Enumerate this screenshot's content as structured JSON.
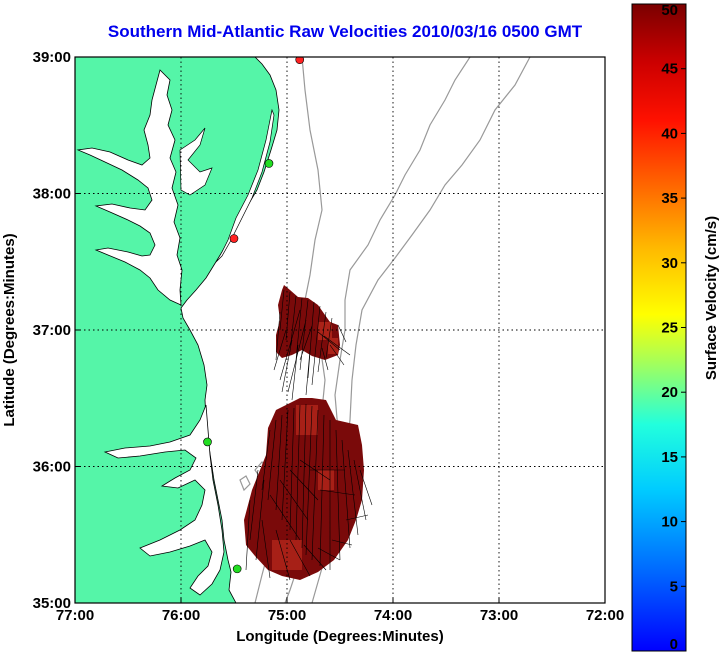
{
  "title": "Southern Mid-Atlantic Raw Velocities 2010/03/16 0500 GMT",
  "xlabel": "Longitude (Degrees:Minutes)",
  "ylabel": "Latitude (Degrees:Minutes)",
  "colorbar_label": "Surface Velocity (cm/s)",
  "lon_ticks": [
    {
      "value": -77,
      "label": "77:00"
    },
    {
      "value": -76,
      "label": "76:00"
    },
    {
      "value": -75,
      "label": "75:00"
    },
    {
      "value": -74,
      "label": "74:00"
    },
    {
      "value": -73,
      "label": "73:00"
    },
    {
      "value": -72,
      "label": "72:00"
    }
  ],
  "lat_ticks": [
    {
      "value": 35,
      "label": "35:00"
    },
    {
      "value": 36,
      "label": "36:00"
    },
    {
      "value": 37,
      "label": "37:00"
    },
    {
      "value": 38,
      "label": "38:00"
    },
    {
      "value": 39,
      "label": "39:00"
    }
  ],
  "colorbar_ticks": [
    {
      "value": 0,
      "label": "0"
    },
    {
      "value": 5,
      "label": "5"
    },
    {
      "value": 10,
      "label": "10"
    },
    {
      "value": 15,
      "label": "15"
    },
    {
      "value": 20,
      "label": "20"
    },
    {
      "value": 25,
      "label": "25"
    },
    {
      "value": 30,
      "label": "30"
    },
    {
      "value": 35,
      "label": "35"
    },
    {
      "value": 40,
      "label": "40"
    },
    {
      "value": 45,
      "label": "45"
    },
    {
      "value": 50,
      "label": "50"
    }
  ],
  "lon_range": [
    -77,
    -72
  ],
  "lat_range": [
    35,
    39
  ],
  "velocity_range": [
    0,
    50
  ],
  "colors": {
    "land": "#55f5a8",
    "water": "#ffffff",
    "high_velocity": "#8b0000",
    "bathymetry": "#999999",
    "station_active": "#22dd22",
    "station_inactive": "#ff2222",
    "title": "#0000ee"
  },
  "stations": [
    {
      "lon": -74.88,
      "lat": 38.98,
      "status": "inactive"
    },
    {
      "lon": -75.17,
      "lat": 38.22,
      "status": "active"
    },
    {
      "lon": -75.5,
      "lat": 37.67,
      "status": "inactive"
    },
    {
      "lon": -75.75,
      "lat": 36.18,
      "status": "active"
    },
    {
      "lon": -75.47,
      "lat": 35.25,
      "status": "active"
    }
  ],
  "chart_data": {
    "type": "heatmap",
    "title": "Southern Mid-Atlantic Raw Velocities 2010/03/16 0500 GMT",
    "xlabel": "Longitude (Degrees:Minutes)",
    "ylabel": "Latitude (Degrees:Minutes)",
    "xlim": [
      -77,
      -72
    ],
    "ylim": [
      35,
      39
    ],
    "colorbar": {
      "label": "Surface Velocity (cm/s)",
      "range": [
        0,
        50
      ]
    },
    "grid": true
  }
}
